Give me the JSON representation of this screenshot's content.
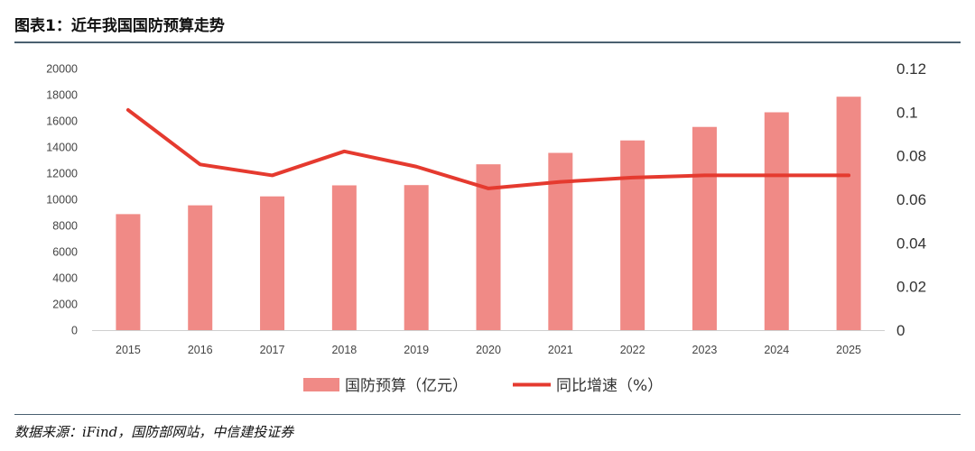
{
  "header": {
    "title": "图表1：近年我国国防预算走势"
  },
  "footer": {
    "source": "数据来源：iFind，国防部网站，中信建投证券"
  },
  "colors": {
    "bar": "#f08a86",
    "line": "#e53a2f",
    "rule": "#4a6070"
  },
  "chart_data": {
    "type": "bar",
    "categories": [
      "2015",
      "2016",
      "2017",
      "2018",
      "2019",
      "2020",
      "2021",
      "2022",
      "2023",
      "2024",
      "2025"
    ],
    "series": [
      {
        "name": "国防预算（亿元）",
        "type": "bar",
        "axis": "left",
        "values": [
          8870,
          9543,
          10226,
          11070,
          11090,
          12680,
          13553,
          14504,
          15537,
          16655,
          17847
        ]
      },
      {
        "name": "同比增速（%）",
        "type": "line",
        "axis": "right",
        "values": [
          0.101,
          0.076,
          0.071,
          0.082,
          0.075,
          0.065,
          0.068,
          0.07,
          0.071,
          0.071,
          0.071
        ]
      }
    ],
    "y_left": {
      "lim": [
        0,
        20000
      ],
      "ticks": [
        "0",
        "2000",
        "4000",
        "6000",
        "8000",
        "10000",
        "12000",
        "14000",
        "16000",
        "18000",
        "20000"
      ]
    },
    "y_right": {
      "lim": [
        0,
        0.12
      ],
      "ticks": [
        "0",
        "0.02",
        "0.04",
        "0.06",
        "0.08",
        "0.1",
        "0.12"
      ]
    },
    "grid": false,
    "legend": "bottom"
  }
}
